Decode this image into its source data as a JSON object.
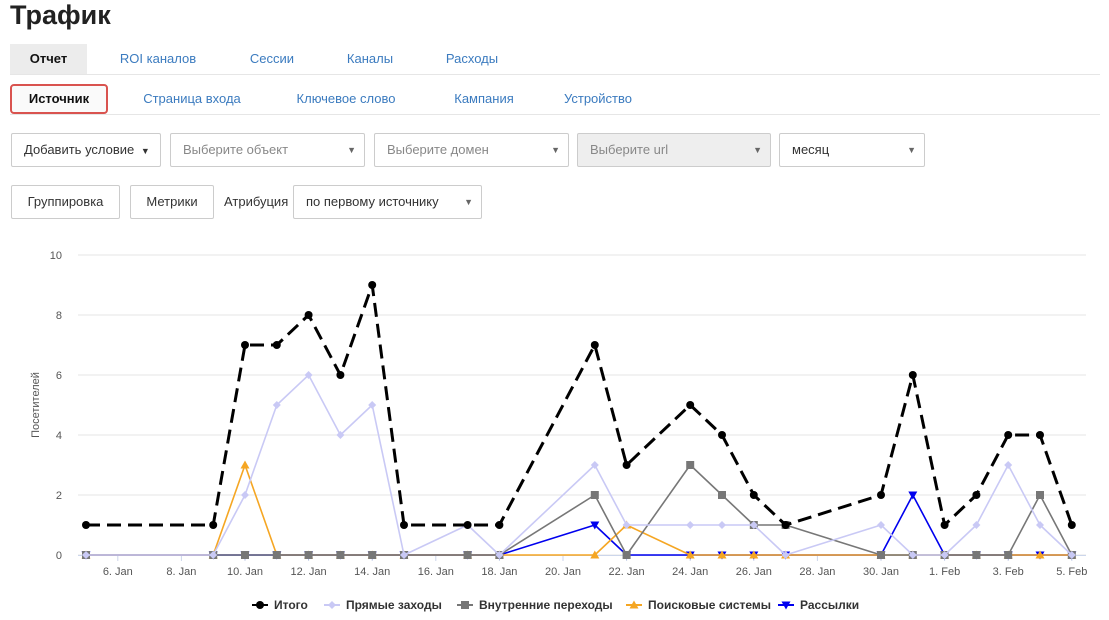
{
  "page_title": "Трафик",
  "tabs_main": [
    {
      "label": "Отчет",
      "active": true
    },
    {
      "label": "ROI каналов",
      "active": false
    },
    {
      "label": "Сессии",
      "active": false
    },
    {
      "label": "Каналы",
      "active": false
    },
    {
      "label": "Расходы",
      "active": false
    }
  ],
  "tabs_sub": [
    {
      "label": "Источник",
      "active": true
    },
    {
      "label": "Страница входа",
      "active": false
    },
    {
      "label": "Ключевое слово",
      "active": false
    },
    {
      "label": "Кампания",
      "active": false
    },
    {
      "label": "Устройство",
      "active": false
    }
  ],
  "filters": {
    "add_condition": "Добавить условие",
    "object_placeholder": "Выберите объект",
    "domain_placeholder": "Выберите домен",
    "url_placeholder": "Выберите url",
    "period_value": "месяц"
  },
  "toolbar": {
    "grouping": "Группировка",
    "metrics": "Метрики",
    "attribution_label": "Атрибуция",
    "attribution_value": "по первому источнику"
  },
  "chart_data": {
    "type": "line",
    "ylabel": "Посетителей",
    "ylim": [
      0,
      10
    ],
    "yticks": [
      0,
      2,
      4,
      6,
      8,
      10
    ],
    "x": [
      "5. Jan",
      "6. Jan",
      "7. Jan",
      "8. Jan",
      "9. Jan",
      "10. Jan",
      "11. Jan",
      "12. Jan",
      "13. Jan",
      "14. Jan",
      "15. Jan",
      "16. Jan",
      "17. Jan",
      "18. Jan",
      "19. Jan",
      "20. Jan",
      "21. Jan",
      "22. Jan",
      "23. Jan",
      "24. Jan",
      "25. Jan",
      "26. Jan",
      "27. Jan",
      "28. Jan",
      "29. Jan",
      "30. Jan",
      "31. Jan",
      "1. Feb",
      "2. Feb",
      "3. Feb",
      "4. Feb",
      "5. Feb"
    ],
    "xticks": [
      "6. Jan",
      "8. Jan",
      "10. Jan",
      "12. Jan",
      "14. Jan",
      "16. Jan",
      "18. Jan",
      "20. Jan",
      "22. Jan",
      "24. Jan",
      "26. Jan",
      "28. Jan",
      "30. Jan",
      "1. Feb",
      "3. Feb",
      "5. Feb"
    ],
    "grid": true,
    "legend_position": "bottom",
    "series": [
      {
        "name": "Итого",
        "color": "#000000",
        "dash": true,
        "marker": "circle",
        "values": [
          1,
          null,
          null,
          null,
          1,
          7,
          7,
          8,
          6,
          9,
          1,
          null,
          1,
          1,
          null,
          null,
          7,
          3,
          null,
          5,
          4,
          2,
          1,
          null,
          null,
          2,
          6,
          1,
          2,
          4,
          4,
          1
        ]
      },
      {
        "name": "Прямые заходы",
        "color": "#c9c9f5",
        "dash": false,
        "marker": "diamond",
        "values": [
          0,
          null,
          null,
          null,
          0,
          2,
          5,
          6,
          4,
          5,
          0,
          null,
          1,
          0,
          null,
          null,
          3,
          1,
          null,
          1,
          1,
          1,
          0,
          null,
          null,
          1,
          0,
          0,
          1,
          3,
          1,
          0
        ]
      },
      {
        "name": "Внутренние переходы",
        "color": "#777777",
        "dash": false,
        "marker": "square",
        "values": [
          0,
          null,
          null,
          null,
          0,
          0,
          0,
          0,
          0,
          0,
          0,
          null,
          0,
          0,
          null,
          null,
          2,
          0,
          null,
          3,
          2,
          1,
          1,
          null,
          null,
          0,
          0,
          0,
          0,
          0,
          2,
          0
        ]
      },
      {
        "name": "Поисковые системы",
        "color": "#f5a623",
        "dash": false,
        "marker": "triangle-up",
        "values": [
          0,
          null,
          null,
          null,
          0,
          3,
          0,
          0,
          0,
          0,
          0,
          null,
          0,
          0,
          null,
          null,
          0,
          1,
          null,
          0,
          0,
          0,
          0,
          null,
          null,
          0,
          0,
          0,
          0,
          0,
          0,
          0
        ]
      },
      {
        "name": "Рассылки",
        "color": "#0000ee",
        "dash": false,
        "marker": "triangle-down",
        "values": [
          0,
          null,
          null,
          null,
          0,
          0,
          0,
          0,
          0,
          0,
          0,
          null,
          0,
          0,
          null,
          null,
          1,
          0,
          null,
          0,
          0,
          0,
          0,
          null,
          null,
          0,
          2,
          0,
          0,
          0,
          0,
          0
        ]
      }
    ]
  }
}
